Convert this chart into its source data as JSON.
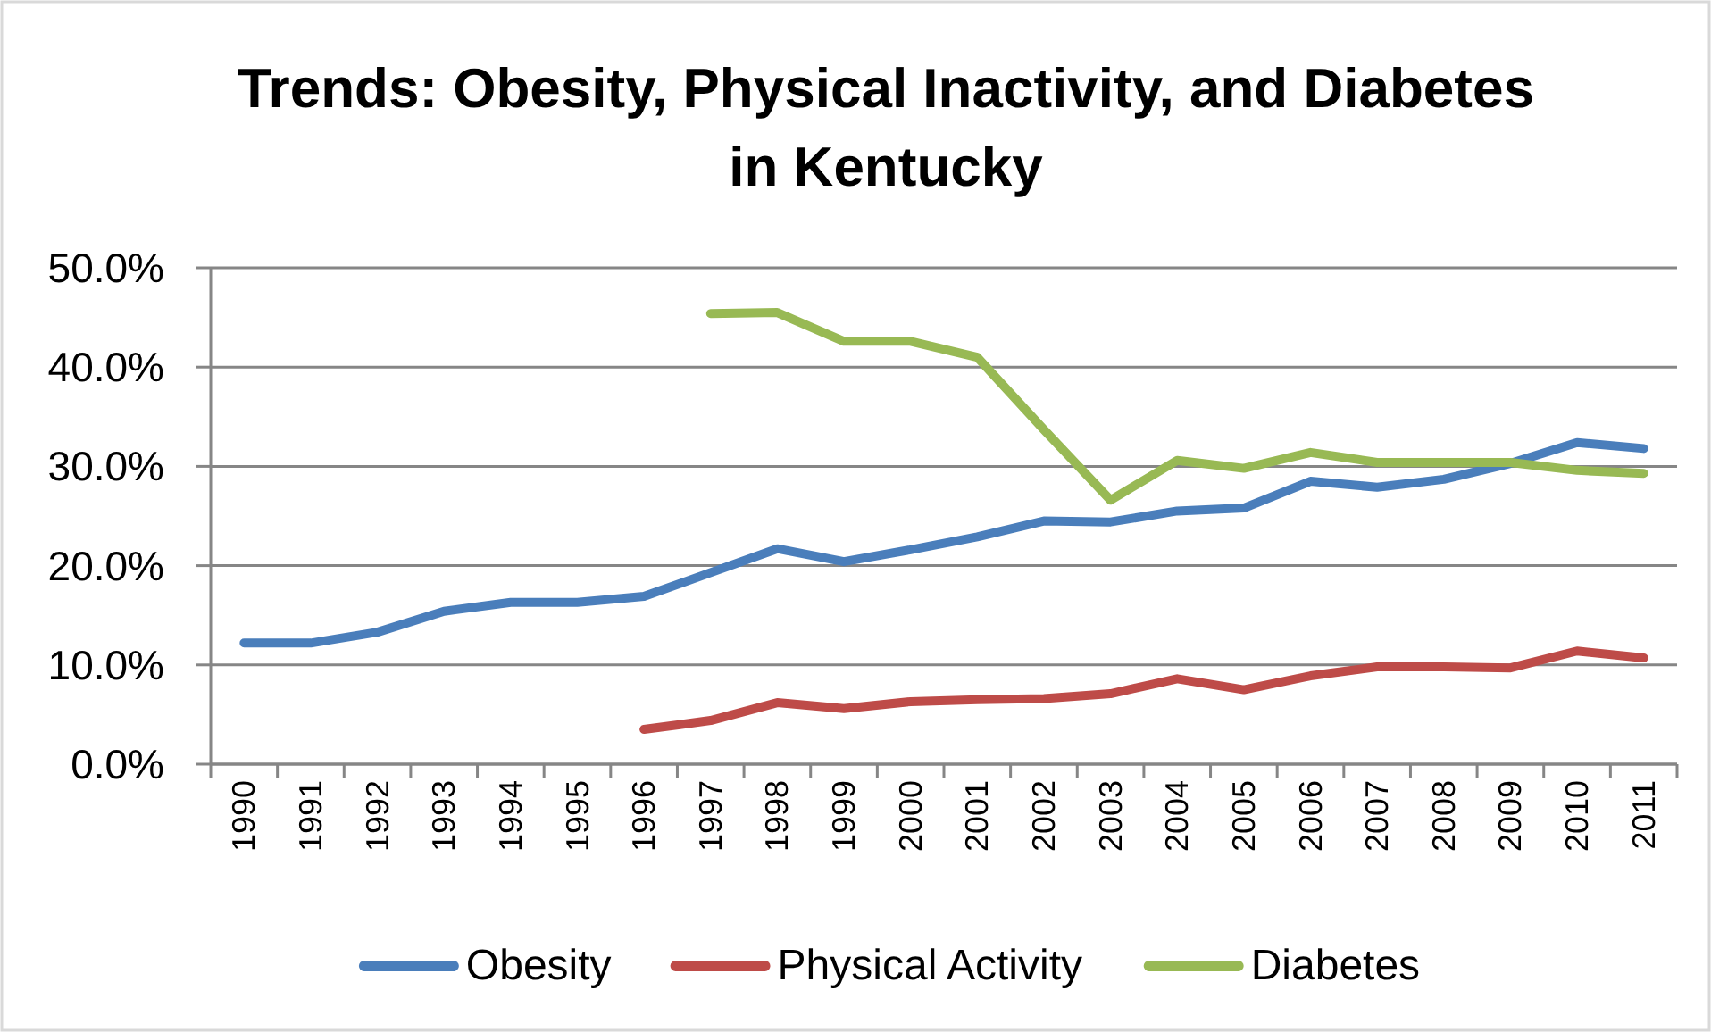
{
  "chart_data": {
    "type": "line",
    "title": "Trends: Obesity, Physical Inactivity, and Diabetes in Kentucky",
    "categories": [
      "1990",
      "1991",
      "1992",
      "1993",
      "1994",
      "1995",
      "1996",
      "1997",
      "1998",
      "1999",
      "2000",
      "2001",
      "2002",
      "2003",
      "2004",
      "2005",
      "2006",
      "2007",
      "2008",
      "2009",
      "2010",
      "2011"
    ],
    "series": [
      {
        "name": "Obesity",
        "color": "#4a7ebb",
        "values": [
          12.2,
          12.2,
          13.3,
          15.4,
          16.3,
          16.3,
          16.9,
          19.3,
          21.7,
          20.4,
          21.6,
          22.9,
          24.5,
          24.4,
          25.5,
          25.8,
          28.5,
          27.9,
          28.7,
          30.3,
          32.4,
          31.8
        ]
      },
      {
        "name": "Physical Activity",
        "color": "#be4b48",
        "values": [
          null,
          null,
          null,
          null,
          null,
          null,
          3.5,
          4.4,
          6.2,
          5.6,
          6.3,
          6.5,
          6.6,
          7.1,
          8.6,
          7.5,
          8.9,
          9.8,
          9.8,
          9.7,
          11.4,
          10.7
        ]
      },
      {
        "name": "Diabetes",
        "color": "#98b954",
        "values": [
          null,
          null,
          null,
          null,
          null,
          null,
          null,
          45.4,
          45.5,
          42.6,
          42.6,
          41.0,
          33.7,
          26.6,
          30.6,
          29.8,
          31.4,
          30.4,
          30.4,
          30.4,
          29.6,
          29.3
        ]
      }
    ],
    "ylim": [
      0,
      50
    ],
    "yticks": [
      {
        "value": 0,
        "label": "0.0%"
      },
      {
        "value": 10,
        "label": "10.0%"
      },
      {
        "value": 20,
        "label": "20.0%"
      },
      {
        "value": 30,
        "label": "30.0%"
      },
      {
        "value": 40,
        "label": "40.0%"
      },
      {
        "value": 50,
        "label": "50.0%"
      }
    ],
    "grid": "y",
    "legend": "bottom"
  }
}
